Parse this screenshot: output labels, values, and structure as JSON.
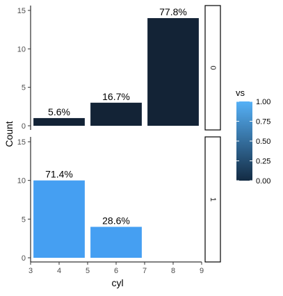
{
  "chart_data": {
    "type": "bar",
    "xlabel": "cyl",
    "ylabel": "Count",
    "xlim": [
      3,
      9
    ],
    "ylim": [
      0,
      15
    ],
    "x_ticks": [
      3,
      4,
      5,
      6,
      7,
      8,
      9
    ],
    "y_ticks": [
      0,
      5,
      10,
      15
    ],
    "grid": false,
    "facets": [
      {
        "strip_label": "0",
        "bars": [
          {
            "x": 4,
            "count": 1,
            "label": "5.6%",
            "vs": 0
          },
          {
            "x": 6,
            "count": 3,
            "label": "16.7%",
            "vs": 0
          },
          {
            "x": 8,
            "count": 14,
            "label": "77.8%",
            "vs": 0
          }
        ]
      },
      {
        "strip_label": "1",
        "bars": [
          {
            "x": 4,
            "count": 10,
            "label": "71.4%",
            "vs": 1
          },
          {
            "x": 6,
            "count": 4,
            "label": "28.6%",
            "vs": 1
          }
        ]
      }
    ],
    "legend": {
      "title": "vs",
      "placement": "right",
      "breaks": [
        "1.00",
        "0.75",
        "0.50",
        "0.25",
        "0.00"
      ],
      "color_low": "#132b43",
      "color_high": "#56b1f7"
    }
  },
  "colors": {
    "bar_vs_0": "#132336",
    "bar_vs_1": "#459ff2"
  }
}
